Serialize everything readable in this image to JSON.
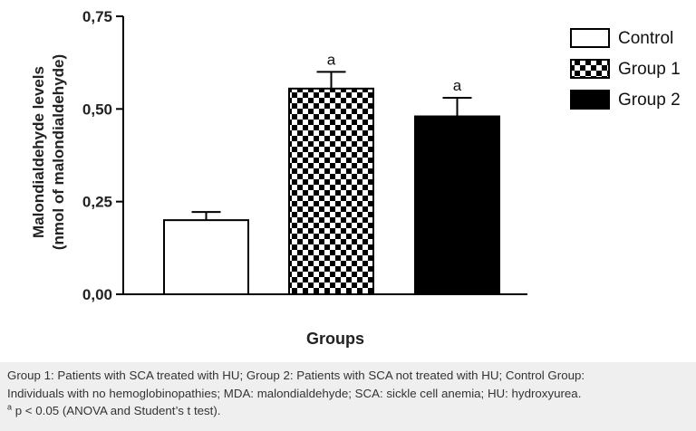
{
  "chart_data": {
    "type": "bar",
    "categories": [
      "Control",
      "Group 1",
      "Group 2"
    ],
    "values": [
      0.2,
      0.555,
      0.48
    ],
    "errors": [
      0.022,
      0.045,
      0.05
    ],
    "annotations": [
      "",
      "a",
      "a"
    ],
    "fills": [
      "white",
      "checkerboard",
      "black"
    ],
    "ylabel_line1": "Malondialdehyde levels",
    "ylabel_line2": "(nmol of malondialdehyde)",
    "xlabel": "Groups",
    "ylim": [
      0,
      0.75
    ],
    "yticks": [
      0,
      0.25,
      0.5,
      0.75
    ],
    "ytick_labels": [
      "0,00",
      "0,25",
      "0,50",
      "0,75"
    ],
    "legend": {
      "position": "top-right",
      "items": [
        "Control",
        "Group 1",
        "Group 2"
      ]
    }
  },
  "caption": {
    "line1": "Group 1: Patients with SCA treated with HU; Group 2: Patients with SCA not treated with HU; Control Group:",
    "line2": "Individuals with no hemoglobinopathies; MDA: malondialdehyde; SCA: sickle cell anemia; HU: hydroxyurea.",
    "line3_sup": "a",
    "line3": " p < 0.05 (ANOVA and Student’s t test)."
  }
}
